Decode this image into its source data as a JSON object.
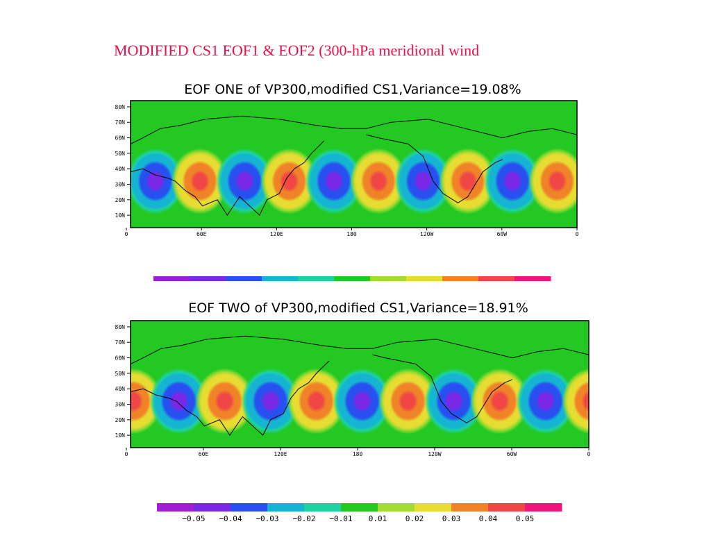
{
  "slide_title": "MODIFIED CS1  EOF1  &  EOF2 (300-hPa meridional wind",
  "colorbar_1": {
    "colors": [
      "#a01ed2",
      "#7a28e6",
      "#2850f0",
      "#14b4d2",
      "#1ed2a0",
      "#23c823",
      "#a0dc32",
      "#e6dc32",
      "#f08228",
      "#f04646",
      "#f0147d"
    ]
  },
  "colorbar_2": {
    "colors": [
      "#a01ed2",
      "#7a28e6",
      "#2850f0",
      "#14b4d2",
      "#1ed2a0",
      "#23c823",
      "#a0dc32",
      "#e6dc32",
      "#f08228",
      "#f04646",
      "#f0147d"
    ],
    "labels": [
      "−0.05",
      "−0.04",
      "−0.03",
      "−0.02",
      "−0.01",
      "0.01",
      "0.02",
      "0.03",
      "0.04",
      "0.05"
    ]
  },
  "chart_data": [
    {
      "type": "heatmap",
      "title": "EOF ONE of VP300,modified CS1,Variance=19.08%",
      "x_ticks": [
        "0",
        "60E",
        "120E",
        "180",
        "120W",
        "60W",
        "0"
      ],
      "y_ticks": [
        "10N",
        "20N",
        "30N",
        "40N",
        "50N",
        "60N",
        "70N",
        "80N"
      ],
      "x_range": [
        0,
        360
      ],
      "y_range": [
        2,
        84
      ],
      "background_color": "#23c823",
      "anomalies": [
        {
          "lon": 20,
          "lat": 32,
          "sign": -1
        },
        {
          "lon": 56,
          "lat": 32,
          "sign": 1
        },
        {
          "lon": 92,
          "lat": 32,
          "sign": -1
        },
        {
          "lon": 128,
          "lat": 32,
          "sign": 1
        },
        {
          "lon": 164,
          "lat": 32,
          "sign": -1
        },
        {
          "lon": 200,
          "lat": 32,
          "sign": 1
        },
        {
          "lon": 236,
          "lat": 32,
          "sign": -1
        },
        {
          "lon": 272,
          "lat": 32,
          "sign": 1
        },
        {
          "lon": 308,
          "lat": 32,
          "sign": -1
        },
        {
          "lon": 344,
          "lat": 32,
          "sign": 1
        }
      ]
    },
    {
      "type": "heatmap",
      "title": "EOF TWO of VP300,modified CS1,Variance=18.91%",
      "x_ticks": [
        "0",
        "60E",
        "120E",
        "180",
        "120W",
        "60W",
        "0"
      ],
      "y_ticks": [
        "10N",
        "20N",
        "30N",
        "40N",
        "50N",
        "60N",
        "70N",
        "80N"
      ],
      "x_range": [
        0,
        360
      ],
      "y_range": [
        2,
        84
      ],
      "background_color": "#23c823",
      "anomalies": [
        {
          "lon": 2,
          "lat": 32,
          "sign": 1
        },
        {
          "lon": 38,
          "lat": 32,
          "sign": -1
        },
        {
          "lon": 74,
          "lat": 32,
          "sign": 1
        },
        {
          "lon": 110,
          "lat": 32,
          "sign": -1
        },
        {
          "lon": 146,
          "lat": 32,
          "sign": 1
        },
        {
          "lon": 182,
          "lat": 32,
          "sign": -1
        },
        {
          "lon": 218,
          "lat": 32,
          "sign": 1
        },
        {
          "lon": 254,
          "lat": 32,
          "sign": -1
        },
        {
          "lon": 290,
          "lat": 32,
          "sign": 1
        },
        {
          "lon": 326,
          "lat": 32,
          "sign": -1
        },
        {
          "lon": 362,
          "lat": 32,
          "sign": 1
        }
      ]
    }
  ]
}
